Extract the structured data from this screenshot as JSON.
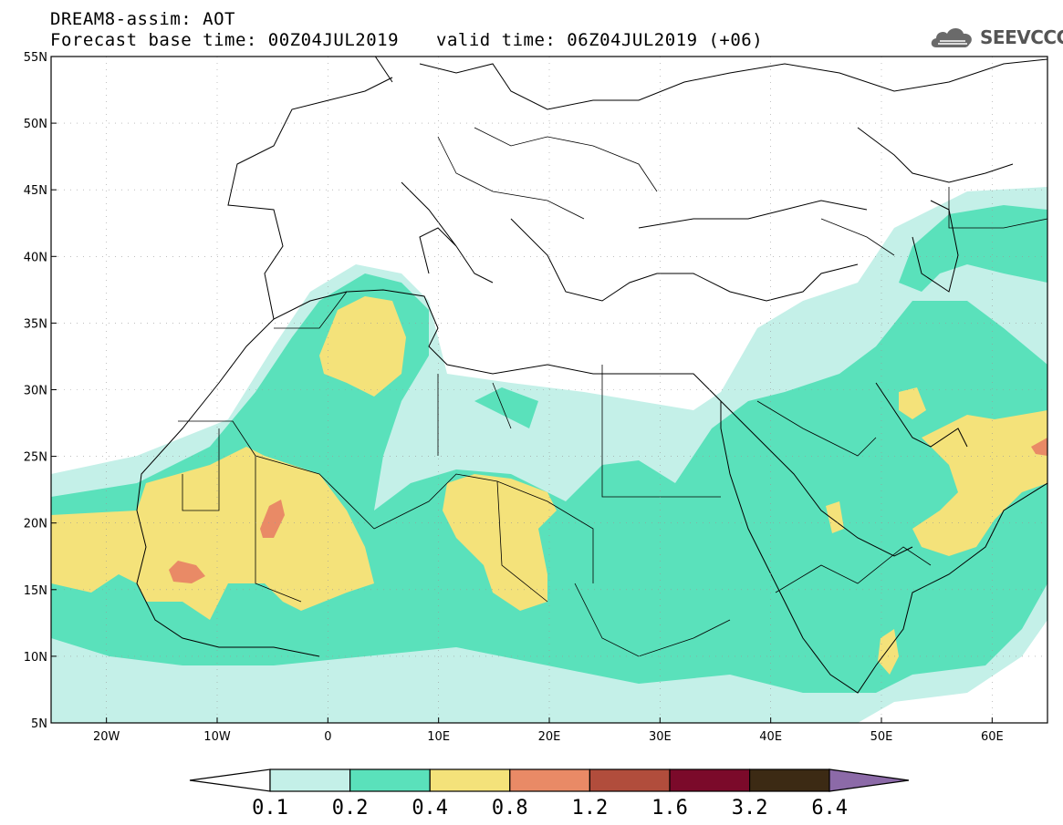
{
  "header": {
    "title": "DREAM8-assim: AOT",
    "base_time": "Forecast base time: 00Z04JUL2019",
    "valid_time": "valid time: 06Z04JUL2019 (+06)"
  },
  "logo": {
    "text": "SEEVCCC",
    "icon": "cloud-icon"
  },
  "map": {
    "lon_range": [
      -25,
      65
    ],
    "lat_range": [
      5,
      55
    ],
    "lon_ticks": [
      {
        "value": -20,
        "label": "20W"
      },
      {
        "value": -10,
        "label": "10W"
      },
      {
        "value": 0,
        "label": "0"
      },
      {
        "value": 10,
        "label": "10E"
      },
      {
        "value": 20,
        "label": "20E"
      },
      {
        "value": 30,
        "label": "30E"
      },
      {
        "value": 40,
        "label": "40E"
      },
      {
        "value": 50,
        "label": "50E"
      },
      {
        "value": 60,
        "label": "60E"
      }
    ],
    "lat_ticks": [
      {
        "value": 5,
        "label": "5N"
      },
      {
        "value": 10,
        "label": "10N"
      },
      {
        "value": 15,
        "label": "15N"
      },
      {
        "value": 20,
        "label": "20N"
      },
      {
        "value": 25,
        "label": "25N"
      },
      {
        "value": 30,
        "label": "30N"
      },
      {
        "value": 35,
        "label": "35N"
      },
      {
        "value": 40,
        "label": "40N"
      },
      {
        "value": 45,
        "label": "45N"
      },
      {
        "value": 50,
        "label": "50N"
      },
      {
        "value": 55,
        "label": "55N"
      }
    ],
    "grid": true
  },
  "colorbar": {
    "labels": [
      "0.1",
      "0.2",
      "0.4",
      "0.8",
      "1.2",
      "1.6",
      "3.2",
      "6.4"
    ],
    "colors": [
      "#c4f0e8",
      "#5ae1bb",
      "#f4e27a",
      "#e98a66",
      "#b14d3c",
      "#7b0a2a",
      "#3c2a14",
      "#8c6aa8"
    ],
    "low_color": "#ffffff"
  },
  "levels_colors": {
    "c01": "#c4f0e8",
    "c02": "#5ae1bb",
    "c04": "#f4e27a",
    "c08": "#e98a66"
  }
}
